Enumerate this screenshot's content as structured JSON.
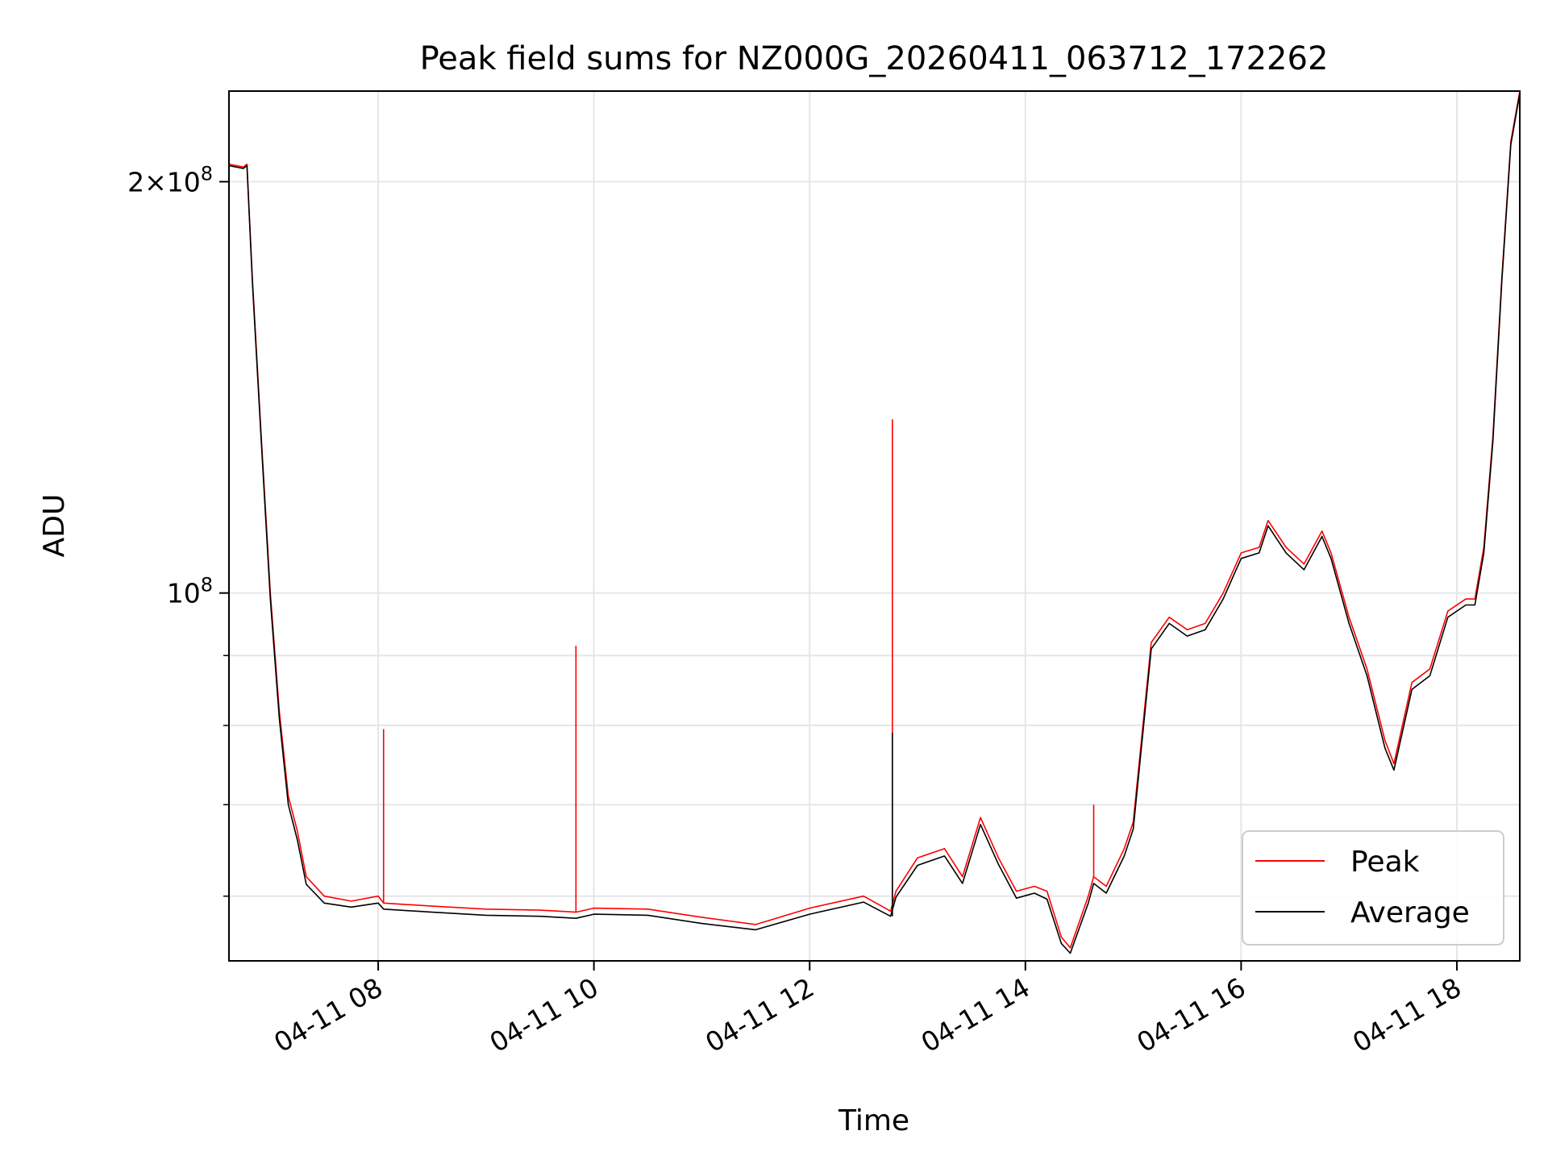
{
  "chart_data": {
    "type": "line",
    "title": "Peak field sums for NZ000G_20260411_063712_172262",
    "xlabel": "Time",
    "ylabel": "ADU",
    "yscale": "log",
    "ylim": [
      53800000,
      233000000
    ],
    "xlim": [
      "2026-04-11T06:37",
      "2026-04-11T18:35"
    ],
    "grid": true,
    "legend_position": "lower-right",
    "x_ticks": [
      {
        "label": "04-11 08",
        "value": "2026-04-11T08:00"
      },
      {
        "label": "04-11 10",
        "value": "2026-04-11T10:00"
      },
      {
        "label": "04-11 12",
        "value": "2026-04-11T12:00"
      },
      {
        "label": "04-11 14",
        "value": "2026-04-11T14:00"
      },
      {
        "label": "04-11 16",
        "value": "2026-04-11T16:00"
      },
      {
        "label": "04-11 18",
        "value": "2026-04-11T18:00"
      }
    ],
    "y_ticks_major": [
      {
        "label": "10^8",
        "base": "10",
        "exp": "8",
        "value": 100000000
      },
      {
        "label": "2×10^8",
        "base": "2×10",
        "exp": "8",
        "value": 200000000
      }
    ],
    "y_ticks_minor": [
      60000000,
      70000000,
      80000000,
      90000000
    ],
    "series": [
      {
        "name": "Peak",
        "color": "#ff0000",
        "x": [
          "2026-04-11T06:37",
          "2026-04-11T06:45",
          "2026-04-11T06:47",
          "2026-04-11T06:50",
          "2026-04-11T06:55",
          "2026-04-11T07:00",
          "2026-04-11T07:05",
          "2026-04-11T07:10",
          "2026-04-11T07:15",
          "2026-04-11T07:20",
          "2026-04-11T07:30",
          "2026-04-11T07:45",
          "2026-04-11T08:00",
          "2026-04-11T08:03",
          "2026-04-11T08:30",
          "2026-04-11T09:00",
          "2026-04-11T09:30",
          "2026-04-11T09:50",
          "2026-04-11T10:00",
          "2026-04-11T10:30",
          "2026-04-11T11:00",
          "2026-04-11T11:30",
          "2026-04-11T12:00",
          "2026-04-11T12:30",
          "2026-04-11T12:45",
          "2026-04-11T12:48",
          "2026-04-11T13:00",
          "2026-04-11T13:15",
          "2026-04-11T13:25",
          "2026-04-11T13:35",
          "2026-04-11T13:45",
          "2026-04-11T13:55",
          "2026-04-11T14:05",
          "2026-04-11T14:12",
          "2026-04-11T14:20",
          "2026-04-11T14:25",
          "2026-04-11T14:35",
          "2026-04-11T14:38",
          "2026-04-11T14:45",
          "2026-04-11T14:55",
          "2026-04-11T15:00",
          "2026-04-11T15:10",
          "2026-04-11T15:20",
          "2026-04-11T15:30",
          "2026-04-11T15:40",
          "2026-04-11T15:50",
          "2026-04-11T16:00",
          "2026-04-11T16:10",
          "2026-04-11T16:15",
          "2026-04-11T16:25",
          "2026-04-11T16:35",
          "2026-04-11T16:45",
          "2026-04-11T16:50",
          "2026-04-11T17:00",
          "2026-04-11T17:10",
          "2026-04-11T17:20",
          "2026-04-11T17:25",
          "2026-04-11T17:35",
          "2026-04-11T17:45",
          "2026-04-11T17:55",
          "2026-04-11T18:05",
          "2026-04-11T18:10",
          "2026-04-11T18:15",
          "2026-04-11T18:20",
          "2026-04-11T18:25",
          "2026-04-11T18:30",
          "2026-04-11T18:35"
        ],
        "y": [
          206000000,
          205000000,
          206000000,
          170000000,
          130000000,
          100000000,
          82000000,
          71000000,
          67000000,
          62000000,
          60000000,
          59500000,
          60000000,
          59300000,
          59000000,
          58700000,
          58600000,
          58400000,
          58800000,
          58700000,
          57900000,
          57200000,
          58800000,
          60000000,
          58500000,
          60500000,
          64000000,
          65000000,
          62000000,
          68500000,
          64000000,
          60500000,
          61000000,
          60500000,
          56000000,
          55000000,
          60000000,
          62000000,
          61000000,
          65000000,
          68000000,
          92000000,
          96000000,
          94000000,
          95000000,
          100000000,
          107000000,
          108000000,
          113000000,
          108000000,
          105000000,
          111000000,
          107000000,
          96000000,
          88000000,
          78000000,
          75000000,
          86000000,
          88000000,
          97000000,
          99000000,
          99000000,
          108000000,
          130000000,
          170000000,
          214000000,
          233000000
        ]
      },
      {
        "name": "Average",
        "color": "#000000",
        "x": [
          "2026-04-11T06:37",
          "2026-04-11T06:45",
          "2026-04-11T06:47",
          "2026-04-11T06:50",
          "2026-04-11T06:55",
          "2026-04-11T07:00",
          "2026-04-11T07:05",
          "2026-04-11T07:10",
          "2026-04-11T07:15",
          "2026-04-11T07:20",
          "2026-04-11T07:30",
          "2026-04-11T07:45",
          "2026-04-11T08:00",
          "2026-04-11T08:03",
          "2026-04-11T08:30",
          "2026-04-11T09:00",
          "2026-04-11T09:30",
          "2026-04-11T09:50",
          "2026-04-11T10:00",
          "2026-04-11T10:30",
          "2026-04-11T11:00",
          "2026-04-11T11:30",
          "2026-04-11T12:00",
          "2026-04-11T12:30",
          "2026-04-11T12:45",
          "2026-04-11T12:48",
          "2026-04-11T13:00",
          "2026-04-11T13:15",
          "2026-04-11T13:25",
          "2026-04-11T13:35",
          "2026-04-11T13:45",
          "2026-04-11T13:55",
          "2026-04-11T14:05",
          "2026-04-11T14:12",
          "2026-04-11T14:20",
          "2026-04-11T14:25",
          "2026-04-11T14:35",
          "2026-04-11T14:38",
          "2026-04-11T14:45",
          "2026-04-11T14:55",
          "2026-04-11T15:00",
          "2026-04-11T15:10",
          "2026-04-11T15:20",
          "2026-04-11T15:30",
          "2026-04-11T15:40",
          "2026-04-11T15:50",
          "2026-04-11T16:00",
          "2026-04-11T16:10",
          "2026-04-11T16:15",
          "2026-04-11T16:25",
          "2026-04-11T16:35",
          "2026-04-11T16:45",
          "2026-04-11T16:50",
          "2026-04-11T17:00",
          "2026-04-11T17:10",
          "2026-04-11T17:20",
          "2026-04-11T17:25",
          "2026-04-11T17:35",
          "2026-04-11T17:45",
          "2026-04-11T17:55",
          "2026-04-11T18:05",
          "2026-04-11T18:10",
          "2026-04-11T18:15",
          "2026-04-11T18:20",
          "2026-04-11T18:25",
          "2026-04-11T18:30",
          "2026-04-11T18:35"
        ],
        "y": [
          205500000,
          204500000,
          205500000,
          169000000,
          129000000,
          99000000,
          81000000,
          70000000,
          66000000,
          61200000,
          59300000,
          58900000,
          59300000,
          58700000,
          58400000,
          58100000,
          58000000,
          57800000,
          58200000,
          58100000,
          57300000,
          56700000,
          58200000,
          59400000,
          58000000,
          59900000,
          63200000,
          64200000,
          61300000,
          67700000,
          63300000,
          59800000,
          60300000,
          59700000,
          55400000,
          54500000,
          59300000,
          61300000,
          60300000,
          64200000,
          67200000,
          91000000,
          95000000,
          93000000,
          94000000,
          99000000,
          106000000,
          107000000,
          112000000,
          107000000,
          104000000,
          110000000,
          106000000,
          95000000,
          87000000,
          77000000,
          74200000,
          85000000,
          87000000,
          96000000,
          98000000,
          98000000,
          107000000,
          129000000,
          169000000,
          213000000,
          232000000
        ]
      }
    ],
    "spikes": [
      {
        "series": "Peak",
        "x": "2026-04-11T08:03",
        "y": 79500000
      },
      {
        "series": "Peak",
        "x": "2026-04-11T09:50",
        "y": 91500000
      },
      {
        "series": "Peak",
        "x": "2026-04-11T12:46",
        "y": 134000000
      },
      {
        "series": "Average",
        "x": "2026-04-11T12:46",
        "y": 79000000
      },
      {
        "series": "Peak",
        "x": "2026-04-11T14:38",
        "y": 70000000
      }
    ]
  }
}
